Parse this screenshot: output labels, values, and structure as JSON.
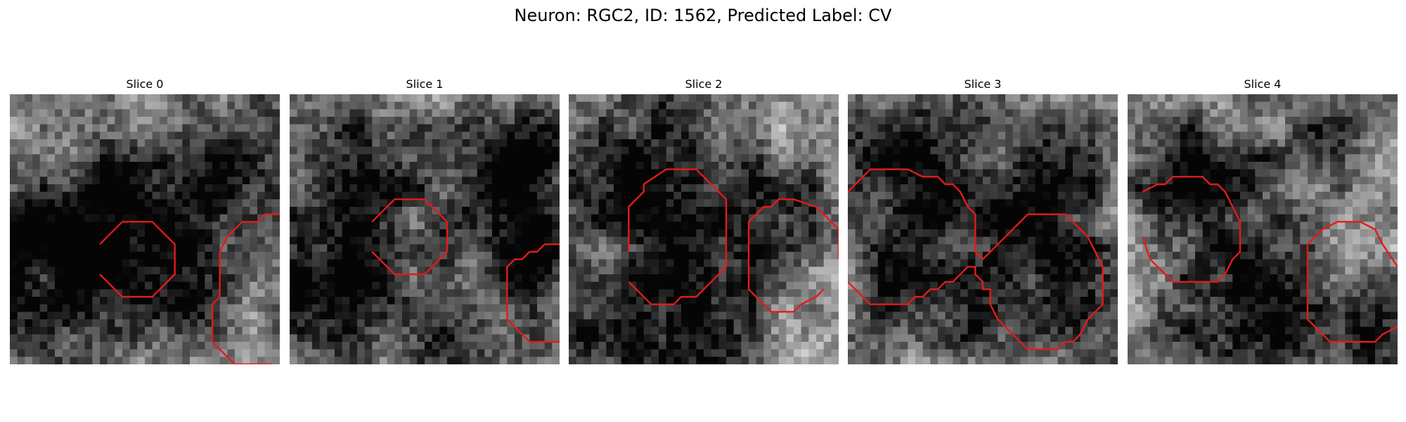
{
  "figure": {
    "title": "Neuron: RGC2, ID: 1562, Predicted Label: CV",
    "contour_color": "#e31b1b",
    "colormap": "grayscale",
    "panels": [
      {
        "label": "Slice 0",
        "seed": 11,
        "blobs": [
          [
            0.4,
            0.44,
            0.16,
            0.55
          ],
          [
            0.85,
            0.3,
            0.2,
            0.45
          ],
          [
            0.15,
            0.7,
            0.22,
            0.5
          ],
          [
            0.7,
            0.8,
            0.18,
            0.35
          ],
          [
            0.1,
            0.45,
            0.12,
            0.4
          ]
        ],
        "contours": [
          [
            [
              12,
              20
            ],
            [
              15,
              17
            ],
            [
              19,
              17
            ],
            [
              22,
              20
            ],
            [
              22,
              24
            ],
            [
              19,
              27
            ],
            [
              15,
              27
            ],
            [
              12,
              24
            ]
          ],
          [
            [
              36,
              16
            ],
            [
              34,
              16
            ],
            [
              33,
              17
            ],
            [
              31,
              17
            ],
            [
              29,
              19
            ],
            [
              28,
              21
            ],
            [
              28,
              27
            ],
            [
              27,
              28
            ],
            [
              27,
              33
            ],
            [
              29,
              35
            ],
            [
              30,
              36
            ],
            [
              35,
              36
            ]
          ]
        ]
      },
      {
        "label": "Slice 1",
        "seed": 23,
        "blobs": [
          [
            0.28,
            0.3,
            0.17,
            0.55
          ],
          [
            0.85,
            0.28,
            0.17,
            0.6
          ],
          [
            0.9,
            0.6,
            0.12,
            0.45
          ],
          [
            0.1,
            0.7,
            0.18,
            0.55
          ],
          [
            0.55,
            0.9,
            0.2,
            0.45
          ]
        ],
        "contours": [
          [
            [
              11,
              17
            ],
            [
              14,
              14
            ],
            [
              18,
              14
            ],
            [
              21,
              17
            ],
            [
              21,
              21
            ],
            [
              18,
              24
            ],
            [
              14,
              24
            ],
            [
              11,
              21
            ]
          ],
          [
            [
              36,
              20
            ],
            [
              34,
              20
            ],
            [
              33,
              21
            ],
            [
              32,
              21
            ],
            [
              31,
              22
            ],
            [
              30,
              22
            ],
            [
              29,
              23
            ],
            [
              29,
              30
            ],
            [
              31,
              32
            ],
            [
              32,
              33
            ],
            [
              36,
              33
            ]
          ]
        ]
      },
      {
        "label": "Slice 2",
        "seed": 37,
        "blobs": [
          [
            0.3,
            0.33,
            0.2,
            0.6
          ],
          [
            0.78,
            0.42,
            0.15,
            0.45
          ],
          [
            0.45,
            0.82,
            0.2,
            0.55
          ],
          [
            0.05,
            0.85,
            0.12,
            0.35
          ]
        ],
        "contours": [
          [
            [
              8,
              21
            ],
            [
              8,
              15
            ],
            [
              10,
              13
            ],
            [
              10,
              12
            ],
            [
              13,
              10
            ],
            [
              14,
              10
            ],
            [
              17,
              10
            ],
            [
              21,
              14
            ],
            [
              21,
              23
            ],
            [
              17,
              27
            ],
            [
              15,
              27
            ],
            [
              14,
              28
            ],
            [
              12,
              28
            ],
            [
              11,
              28
            ],
            [
              8,
              25
            ]
          ],
          [
            [
              36,
              22
            ],
            [
              36,
              18
            ],
            [
              33,
              15
            ],
            [
              30,
              14
            ],
            [
              28,
              14
            ],
            [
              27,
              15
            ],
            [
              26,
              15
            ],
            [
              24,
              17
            ],
            [
              24,
              26
            ],
            [
              26,
              28
            ],
            [
              27,
              29
            ],
            [
              30,
              29
            ],
            [
              31,
              28
            ],
            [
              33,
              27
            ],
            [
              34,
              26
            ]
          ]
        ]
      },
      {
        "label": "Slice 3",
        "seed": 49,
        "blobs": [
          [
            0.25,
            0.25,
            0.18,
            0.55
          ],
          [
            0.72,
            0.4,
            0.17,
            0.55
          ],
          [
            0.55,
            0.75,
            0.2,
            0.45
          ],
          [
            0.15,
            0.7,
            0.14,
            0.35
          ],
          [
            0.9,
            0.9,
            0.12,
            0.35
          ]
        ],
        "contours": [
          [
            [
              0,
              13
            ],
            [
              3,
              10
            ],
            [
              8,
              10
            ],
            [
              10,
              11
            ],
            [
              12,
              11
            ],
            [
              13,
              12
            ],
            [
              14,
              12
            ],
            [
              15,
              13
            ],
            [
              16,
              15
            ],
            [
              17,
              16
            ],
            [
              17,
              21
            ],
            [
              18,
              22
            ],
            [
              24,
              16
            ],
            [
              29,
              16
            ],
            [
              30,
              17
            ],
            [
              31,
              18
            ],
            [
              32,
              19
            ],
            [
              33,
              21
            ],
            [
              34,
              23
            ],
            [
              34,
              28
            ],
            [
              32,
              30
            ],
            [
              31,
              32
            ],
            [
              30,
              33
            ],
            [
              29,
              33
            ],
            [
              28,
              34
            ],
            [
              24,
              34
            ],
            [
              22,
              32
            ],
            [
              20,
              30
            ],
            [
              19,
              28
            ],
            [
              19,
              26
            ],
            [
              18,
              26
            ],
            [
              18,
              25
            ],
            [
              17,
              24
            ],
            [
              17,
              23
            ],
            [
              16,
              23
            ],
            [
              15,
              24
            ],
            [
              14,
              25
            ],
            [
              13,
              25
            ],
            [
              12,
              26
            ],
            [
              11,
              26
            ],
            [
              10,
              27
            ],
            [
              9,
              27
            ],
            [
              8,
              28
            ],
            [
              3,
              28
            ],
            [
              2,
              27
            ],
            [
              0,
              25
            ]
          ]
        ]
      },
      {
        "label": "Slice 4",
        "seed": 61,
        "blobs": [
          [
            0.25,
            0.3,
            0.18,
            0.55
          ],
          [
            0.45,
            0.8,
            0.22,
            0.6
          ],
          [
            0.95,
            0.9,
            0.14,
            0.4
          ],
          [
            0.75,
            0.15,
            0.15,
            0.3
          ]
        ],
        "contours": [
          [
            [
              2,
              13
            ],
            [
              4,
              12
            ],
            [
              5,
              12
            ],
            [
              6,
              11
            ],
            [
              7,
              11
            ],
            [
              10,
              11
            ],
            [
              11,
              12
            ],
            [
              12,
              12
            ],
            [
              13,
              13
            ],
            [
              14,
              15
            ],
            [
              15,
              17
            ],
            [
              15,
              21
            ],
            [
              14,
              22
            ],
            [
              13,
              24
            ],
            [
              12,
              25
            ],
            [
              6,
              25
            ],
            [
              4,
              23
            ],
            [
              3,
              22
            ],
            [
              2,
              19
            ]
          ],
          [
            [
              36,
              23
            ],
            [
              34,
              20
            ],
            [
              33,
              18
            ],
            [
              31,
              17
            ],
            [
              28,
              17
            ],
            [
              26,
              18
            ],
            [
              24,
              20
            ],
            [
              24,
              30
            ],
            [
              26,
              32
            ],
            [
              27,
              33
            ],
            [
              32,
              33
            ],
            [
              33,
              33
            ],
            [
              34,
              32
            ],
            [
              36,
              31
            ]
          ]
        ]
      }
    ]
  }
}
